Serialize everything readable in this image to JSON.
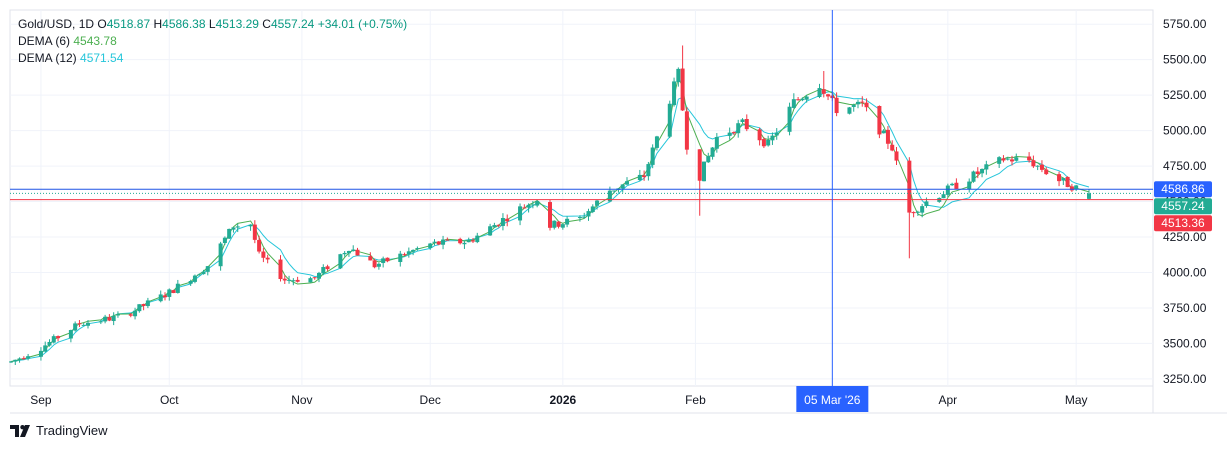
{
  "header": {
    "symbol": "Gold/USD",
    "interval": "1D",
    "open_label": "O",
    "open": "4518.87",
    "high_label": "H",
    "high": "4586.38",
    "low_label": "L",
    "low": "4513.29",
    "close_label": "C",
    "close": "4557.24",
    "change": "+34.01 (+0.75%)"
  },
  "indicators": [
    {
      "name": "DEMA (6)",
      "value": "4543.78",
      "color": "#4caf50"
    },
    {
      "name": "DEMA (12)",
      "value": "4571.54",
      "color": "#26c6da"
    }
  ],
  "brand": {
    "label": "TradingView"
  },
  "colors": {
    "up": "#22ab94",
    "down": "#f23645",
    "dema6": "#4caf50",
    "dema12": "#26c6da",
    "crosshair": "#2962ff",
    "grid": "#f0f3fa",
    "high_line": "#1e53e5",
    "low_line": "#f23645"
  },
  "chart_data": {
    "type": "candlestick",
    "y_axis": {
      "min": 3200,
      "max": 5850,
      "ticks": [
        "3250.00",
        "3500.00",
        "3750.00",
        "4000.00",
        "4250.00",
        "4500.00",
        "4750.00",
        "5000.00",
        "5250.00",
        "5500.00",
        "5750.00"
      ]
    },
    "x_axis": {
      "ticks": [
        {
          "label": "Sep",
          "date": "2025-09-01",
          "bold": false
        },
        {
          "label": "Oct",
          "date": "2025-10-01",
          "bold": false
        },
        {
          "label": "Nov",
          "date": "2025-11-01",
          "bold": false
        },
        {
          "label": "Dec",
          "date": "2025-12-01",
          "bold": false
        },
        {
          "label": "2026",
          "date": "2026-01-01",
          "bold": true
        },
        {
          "label": "Feb",
          "date": "2026-02-01",
          "bold": false
        },
        {
          "label": "Apr",
          "date": "2026-04-01",
          "bold": false
        },
        {
          "label": "May",
          "date": "2026-05-01",
          "bold": false
        }
      ]
    },
    "crosshair": {
      "label": "05 Mar '26",
      "date": "2026-03-05"
    },
    "price_labels": [
      {
        "value": 4586.86,
        "label": "4586.86",
        "color": "#2962ff"
      },
      {
        "value": 4557.24,
        "label": "4557.24",
        "color": "#22ab94"
      },
      {
        "value": 4513.36,
        "label": "4513.36",
        "color": "#f23645"
      }
    ],
    "grid": true,
    "keypoints": [
      [
        "2025-08-25",
        3370
      ],
      [
        "2025-09-01",
        3470
      ],
      [
        "2025-09-10",
        3640
      ],
      [
        "2025-09-20",
        3690
      ],
      [
        "2025-10-01",
        3860
      ],
      [
        "2025-10-10",
        4050
      ],
      [
        "2025-10-16",
        4330
      ],
      [
        "2025-10-20",
        4340
      ],
      [
        "2025-10-22",
        4120
      ],
      [
        "2025-10-28",
        3950
      ],
      [
        "2025-11-04",
        3960
      ],
      [
        "2025-11-12",
        4180
      ],
      [
        "2025-11-18",
        4050
      ],
      [
        "2025-12-01",
        4200
      ],
      [
        "2025-12-10",
        4220
      ],
      [
        "2025-12-22",
        4450
      ],
      [
        "2025-12-26",
        4520
      ],
      [
        "2025-12-29",
        4330
      ],
      [
        "2026-01-05",
        4380
      ],
      [
        "2026-01-12",
        4580
      ],
      [
        "2026-01-20",
        4680
      ],
      [
        "2026-01-28",
        5400
      ],
      [
        "2026-01-30",
        4900
      ],
      [
        "2026-02-02",
        4680
      ],
      [
        "2026-02-06",
        4950
      ],
      [
        "2026-02-12",
        5050
      ],
      [
        "2026-02-18",
        4900
      ],
      [
        "2026-02-24",
        5200
      ],
      [
        "2026-03-02",
        5330
      ],
      [
        "2026-03-06",
        5150
      ],
      [
        "2026-03-12",
        5180
      ],
      [
        "2026-03-19",
        4880
      ],
      [
        "2026-03-23",
        4420
      ],
      [
        "2026-03-27",
        4500
      ],
      [
        "2026-04-02",
        4600
      ],
      [
        "2026-04-08",
        4700
      ],
      [
        "2026-04-14",
        4800
      ],
      [
        "2026-04-20",
        4790
      ],
      [
        "2026-04-27",
        4650
      ],
      [
        "2026-05-04",
        4557
      ]
    ],
    "spikes": [
      {
        "date": "2026-01-29",
        "high": 5600
      },
      {
        "date": "2026-02-02",
        "low": 4400
      },
      {
        "date": "2026-03-23",
        "low": 4100
      },
      {
        "date": "2026-03-03",
        "high": 5420
      }
    ]
  }
}
